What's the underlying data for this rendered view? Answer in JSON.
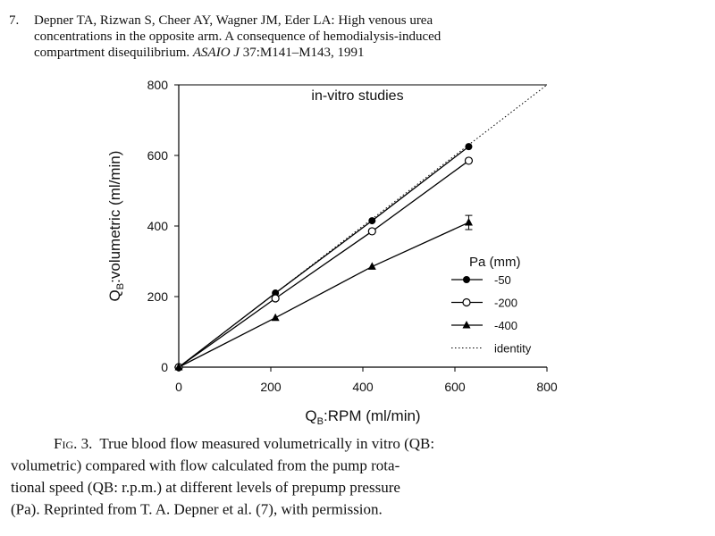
{
  "reference": {
    "number": "7.",
    "line1": "Depner TA, Rizwan S, Cheer AY, Wagner JM, Eder LA: High venous urea",
    "line2": "concentrations in the opposite arm. A consequence of hemodialysis-induced",
    "line3_start": "compartment disequilibrium.",
    "line3_journal": "ASAIO J",
    "line3_end": "37:M141–M143, 1991"
  },
  "chart_data": {
    "type": "line",
    "annotation": "in-vitro studies",
    "x_label": {
      "main": "Q",
      "sub": "B",
      "rest": ":RPM (ml/min)"
    },
    "y_label": {
      "main": "Q",
      "sub": "B",
      "rest": ":volumetric (ml/min)"
    },
    "xlim": [
      0,
      800
    ],
    "ylim": [
      0,
      800
    ],
    "xticks": [
      0,
      200,
      400,
      600,
      800
    ],
    "yticks": [
      0,
      200,
      400,
      600,
      800
    ],
    "legend_title": "Pa (mm)",
    "legend_position": "right",
    "series": [
      {
        "name": "-50",
        "color": "#000000",
        "marker": "filled-circle",
        "x": [
          0,
          210,
          420,
          630
        ],
        "values": [
          0,
          210,
          415,
          625
        ]
      },
      {
        "name": "-200",
        "color": "#000000",
        "marker": "open-circle",
        "x": [
          0,
          210,
          420,
          630
        ],
        "values": [
          0,
          195,
          385,
          585
        ]
      },
      {
        "name": "-400",
        "color": "#000000",
        "marker": "filled-triangle",
        "x": [
          0,
          210,
          420,
          630
        ],
        "values": [
          0,
          140,
          285,
          410
        ],
        "error_bars": [
          {
            "index": 3,
            "error": 20
          }
        ]
      },
      {
        "name": "identity",
        "color": "#000000",
        "marker": "none",
        "dashed": true,
        "x": [
          0,
          800
        ],
        "values": [
          0,
          800
        ]
      }
    ]
  },
  "caption": {
    "label": "Fig. 3.",
    "lines": [
      "True blood flow measured volumetrically in vitro (QB:",
      "volumetric) compared with flow calculated from the pump rota-",
      "tional speed (QB: r.p.m.) at different levels of prepump pressure",
      "(Pa). Reprinted from T. A. Depner et al. (7), with permission."
    ]
  }
}
